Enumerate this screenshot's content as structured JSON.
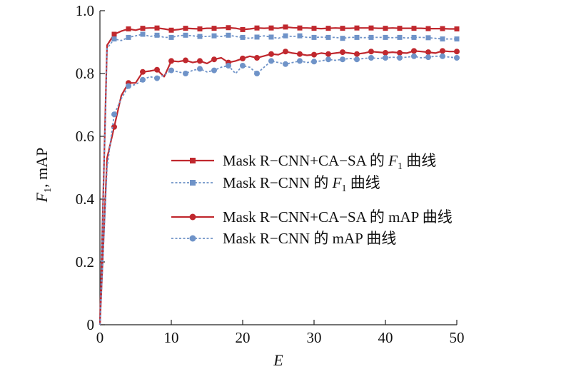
{
  "chart_data": {
    "type": "line",
    "xlabel": "E",
    "ylabel": {
      "main": "F",
      "sub": "1",
      "rest": ", mAP"
    },
    "xlim": [
      0,
      50
    ],
    "ylim": [
      0,
      1.0
    ],
    "xticks": [
      "0",
      "10",
      "20",
      "30",
      "40",
      "50"
    ],
    "yticks": [
      "0",
      "0.2",
      "0.4",
      "0.6",
      "0.8",
      "1.0"
    ],
    "grid": false,
    "legend_position": "center-right",
    "x": [
      0,
      1,
      2,
      3,
      4,
      5,
      6,
      7,
      8,
      9,
      10,
      11,
      12,
      13,
      14,
      15,
      16,
      17,
      18,
      19,
      20,
      21,
      22,
      23,
      24,
      25,
      26,
      27,
      28,
      29,
      30,
      31,
      32,
      33,
      34,
      35,
      36,
      37,
      38,
      39,
      40,
      41,
      42,
      43,
      44,
      45,
      46,
      47,
      48,
      49,
      50
    ],
    "series": [
      {
        "name": {
          "before": "Mask R−CNN+CA−SA 的 ",
          "italic": "F",
          "sub": "1",
          "after": " 曲线"
        },
        "color": "#c0282e",
        "dash": "solid",
        "marker": "square",
        "values": [
          0.0,
          0.89,
          0.925,
          0.935,
          0.942,
          0.938,
          0.944,
          0.945,
          0.945,
          0.942,
          0.938,
          0.94,
          0.944,
          0.943,
          0.942,
          0.944,
          0.944,
          0.945,
          0.946,
          0.944,
          0.94,
          0.942,
          0.945,
          0.944,
          0.945,
          0.944,
          0.948,
          0.946,
          0.945,
          0.945,
          0.944,
          0.943,
          0.944,
          0.945,
          0.944,
          0.944,
          0.945,
          0.945,
          0.945,
          0.944,
          0.944,
          0.945,
          0.944,
          0.944,
          0.944,
          0.944,
          0.943,
          0.943,
          0.943,
          0.942,
          0.942
        ]
      },
      {
        "name": {
          "before": "Mask R−CNN 的 ",
          "italic": "F",
          "sub": "1",
          "after": " 曲线"
        },
        "color": "#6f93c8",
        "dash": "dotted",
        "marker": "square",
        "values": [
          0.0,
          0.88,
          0.91,
          0.905,
          0.915,
          0.92,
          0.925,
          0.918,
          0.922,
          0.915,
          0.915,
          0.92,
          0.922,
          0.92,
          0.918,
          0.918,
          0.92,
          0.918,
          0.922,
          0.918,
          0.915,
          0.912,
          0.916,
          0.92,
          0.916,
          0.912,
          0.92,
          0.918,
          0.92,
          0.915,
          0.915,
          0.916,
          0.915,
          0.915,
          0.912,
          0.915,
          0.915,
          0.914,
          0.915,
          0.915,
          0.915,
          0.914,
          0.915,
          0.913,
          0.915,
          0.915,
          0.914,
          0.912,
          0.91,
          0.91,
          0.91
        ]
      },
      {
        "name": {
          "before": "Mask R−CNN+CA−SA 的 mAP 曲线"
        },
        "color": "#c0282e",
        "dash": "solid",
        "marker": "circle",
        "values": [
          0.0,
          0.53,
          0.63,
          0.73,
          0.77,
          0.77,
          0.805,
          0.808,
          0.812,
          0.79,
          0.84,
          0.838,
          0.842,
          0.835,
          0.84,
          0.832,
          0.845,
          0.85,
          0.835,
          0.84,
          0.848,
          0.855,
          0.85,
          0.856,
          0.862,
          0.86,
          0.87,
          0.865,
          0.862,
          0.858,
          0.86,
          0.865,
          0.862,
          0.865,
          0.868,
          0.865,
          0.862,
          0.865,
          0.87,
          0.868,
          0.866,
          0.868,
          0.866,
          0.865,
          0.872,
          0.87,
          0.868,
          0.865,
          0.872,
          0.87,
          0.87
        ]
      },
      {
        "name": {
          "before": "Mask R−CNN 的 mAP 曲线"
        },
        "color": "#6f93c8",
        "dash": "dotted",
        "marker": "circle",
        "values": [
          0.0,
          0.5,
          0.67,
          0.72,
          0.76,
          0.765,
          0.78,
          0.79,
          0.785,
          0.795,
          0.81,
          0.805,
          0.8,
          0.81,
          0.815,
          0.805,
          0.81,
          0.82,
          0.825,
          0.8,
          0.825,
          0.82,
          0.8,
          0.82,
          0.84,
          0.835,
          0.83,
          0.835,
          0.84,
          0.835,
          0.838,
          0.84,
          0.845,
          0.842,
          0.845,
          0.848,
          0.845,
          0.848,
          0.85,
          0.848,
          0.85,
          0.852,
          0.85,
          0.852,
          0.855,
          0.85,
          0.852,
          0.855,
          0.855,
          0.852,
          0.85
        ]
      }
    ]
  }
}
